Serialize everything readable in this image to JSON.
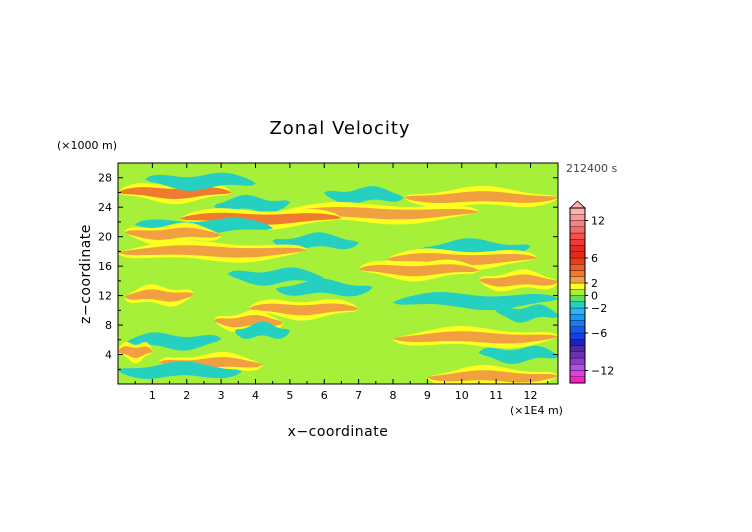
{
  "chart_data": {
    "type": "heatmap",
    "title": "Zonal Velocity",
    "xlabel": "x−coordinate",
    "ylabel": "z−coordinate",
    "x_unit": "(×1E4 m)",
    "y_unit": "(×1000 m)",
    "time_label": "212400 s",
    "xlim": [
      0,
      12.8
    ],
    "ylim": [
      0,
      30
    ],
    "x_ticks": [
      "1",
      "2",
      "3",
      "4",
      "5",
      "6",
      "7",
      "8",
      "9",
      "10",
      "11",
      "12"
    ],
    "y_ticks": [
      "4",
      "8",
      "12",
      "16",
      "20",
      "24",
      "28"
    ],
    "colorbar": {
      "range": [
        -14,
        14
      ],
      "tick_labels": [
        "12",
        "6",
        "2",
        "0",
        "−2",
        "−6",
        "−12"
      ],
      "tick_values": [
        12,
        6,
        2,
        0,
        -2,
        -6,
        -12
      ],
      "levels": [
        {
          "from": -14,
          "to": -13,
          "color": "#ff1fbf"
        },
        {
          "from": -13,
          "to": -12,
          "color": "#e040e0"
        },
        {
          "from": -12,
          "to": -11,
          "color": "#b050e8"
        },
        {
          "from": -11,
          "to": -10,
          "color": "#8a3cc8"
        },
        {
          "from": -10,
          "to": -9,
          "color": "#6a30b8"
        },
        {
          "from": -9,
          "to": -8,
          "color": "#5028a0"
        },
        {
          "from": -8,
          "to": -7,
          "color": "#2020c0"
        },
        {
          "from": -7,
          "to": -6,
          "color": "#1840e0"
        },
        {
          "from": -6,
          "to": -5,
          "color": "#1858f0"
        },
        {
          "from": -5,
          "to": -4,
          "color": "#1a78f5"
        },
        {
          "from": -4,
          "to": -3,
          "color": "#1a98f8"
        },
        {
          "from": -3,
          "to": -2,
          "color": "#2ab4fa"
        },
        {
          "from": -2,
          "to": -1,
          "color": "#25d0c0"
        },
        {
          "from": -1,
          "to": 0,
          "color": "#60e060"
        },
        {
          "from": 0,
          "to": 1,
          "color": "#a6f03a"
        },
        {
          "from": 1,
          "to": 2,
          "color": "#ffff20"
        },
        {
          "from": 2,
          "to": 3,
          "color": "#f0a040"
        },
        {
          "from": 3,
          "to": 4,
          "color": "#f07a30"
        },
        {
          "from": 4,
          "to": 5,
          "color": "#f05a25"
        },
        {
          "from": 5,
          "to": 6,
          "color": "#ec3a1c"
        },
        {
          "from": 6,
          "to": 7,
          "color": "#e62a18"
        },
        {
          "from": 7,
          "to": 8,
          "color": "#e52a2a"
        },
        {
          "from": 8,
          "to": 9,
          "color": "#ef3a3a"
        },
        {
          "from": 9,
          "to": 10,
          "color": "#f45050"
        },
        {
          "from": 10,
          "to": 11,
          "color": "#f86868"
        },
        {
          "from": 11,
          "to": 12,
          "color": "#fb8080"
        },
        {
          "from": 12,
          "to": 13,
          "color": "#fc9898"
        },
        {
          "from": 13,
          "to": 14,
          "color": "#ffb0b0"
        }
      ]
    },
    "bands": [
      {
        "z": 26.0,
        "value": 3.2,
        "x_from": 0.0,
        "x_to": 3.3
      },
      {
        "z": 27.5,
        "value": -1.5,
        "x_from": 0.8,
        "x_to": 4.0
      },
      {
        "z": 25.6,
        "value": -1.6,
        "x_from": 6.0,
        "x_to": 8.3
      },
      {
        "z": 25.3,
        "value": 2.6,
        "x_from": 8.3,
        "x_to": 12.8
      },
      {
        "z": 24.4,
        "value": -1.3,
        "x_from": 2.8,
        "x_to": 5.0
      },
      {
        "z": 23.2,
        "value": 2.4,
        "x_from": 4.4,
        "x_to": 10.5
      },
      {
        "z": 22.5,
        "value": 3.0,
        "x_from": 1.8,
        "x_to": 6.5
      },
      {
        "z": 21.4,
        "value": -1.4,
        "x_from": 0.5,
        "x_to": 4.5
      },
      {
        "z": 20.4,
        "value": 2.4,
        "x_from": 0.2,
        "x_to": 3.0
      },
      {
        "z": 19.3,
        "value": -1.4,
        "x_from": 4.5,
        "x_to": 7.0
      },
      {
        "z": 18.5,
        "value": -1.5,
        "x_from": 8.8,
        "x_to": 12.0
      },
      {
        "z": 18.0,
        "value": 2.2,
        "x_from": 0.0,
        "x_to": 5.5
      },
      {
        "z": 17.0,
        "value": 2.5,
        "x_from": 7.8,
        "x_to": 12.2
      },
      {
        "z": 15.5,
        "value": 2.8,
        "x_from": 7.0,
        "x_to": 10.5
      },
      {
        "z": 14.6,
        "value": -1.3,
        "x_from": 3.2,
        "x_to": 6.0
      },
      {
        "z": 14.0,
        "value": 2.3,
        "x_from": 10.5,
        "x_to": 12.8
      },
      {
        "z": 13.0,
        "value": -1.4,
        "x_from": 4.6,
        "x_to": 7.4
      },
      {
        "z": 12.0,
        "value": 2.6,
        "x_from": 0.2,
        "x_to": 2.2
      },
      {
        "z": 11.3,
        "value": -1.3,
        "x_from": 8.0,
        "x_to": 12.8
      },
      {
        "z": 10.2,
        "value": 2.3,
        "x_from": 3.8,
        "x_to": 7.0
      },
      {
        "z": 9.6,
        "value": -1.3,
        "x_from": 11.0,
        "x_to": 12.8
      },
      {
        "z": 8.5,
        "value": 2.5,
        "x_from": 2.8,
        "x_to": 4.8
      },
      {
        "z": 7.2,
        "value": -1.6,
        "x_from": 3.4,
        "x_to": 5.0
      },
      {
        "z": 6.3,
        "value": 2.2,
        "x_from": 8.0,
        "x_to": 12.8
      },
      {
        "z": 5.8,
        "value": -1.3,
        "x_from": 0.2,
        "x_to": 3.0
      },
      {
        "z": 4.4,
        "value": 2.6,
        "x_from": 0.0,
        "x_to": 1.0
      },
      {
        "z": 4.0,
        "value": -1.3,
        "x_from": 10.5,
        "x_to": 12.8
      },
      {
        "z": 2.8,
        "value": 2.4,
        "x_from": 1.2,
        "x_to": 4.2
      },
      {
        "z": 1.8,
        "value": -1.4,
        "x_from": 0.0,
        "x_to": 3.6
      },
      {
        "z": 1.0,
        "value": 2.4,
        "x_from": 9.0,
        "x_to": 12.8
      }
    ]
  }
}
